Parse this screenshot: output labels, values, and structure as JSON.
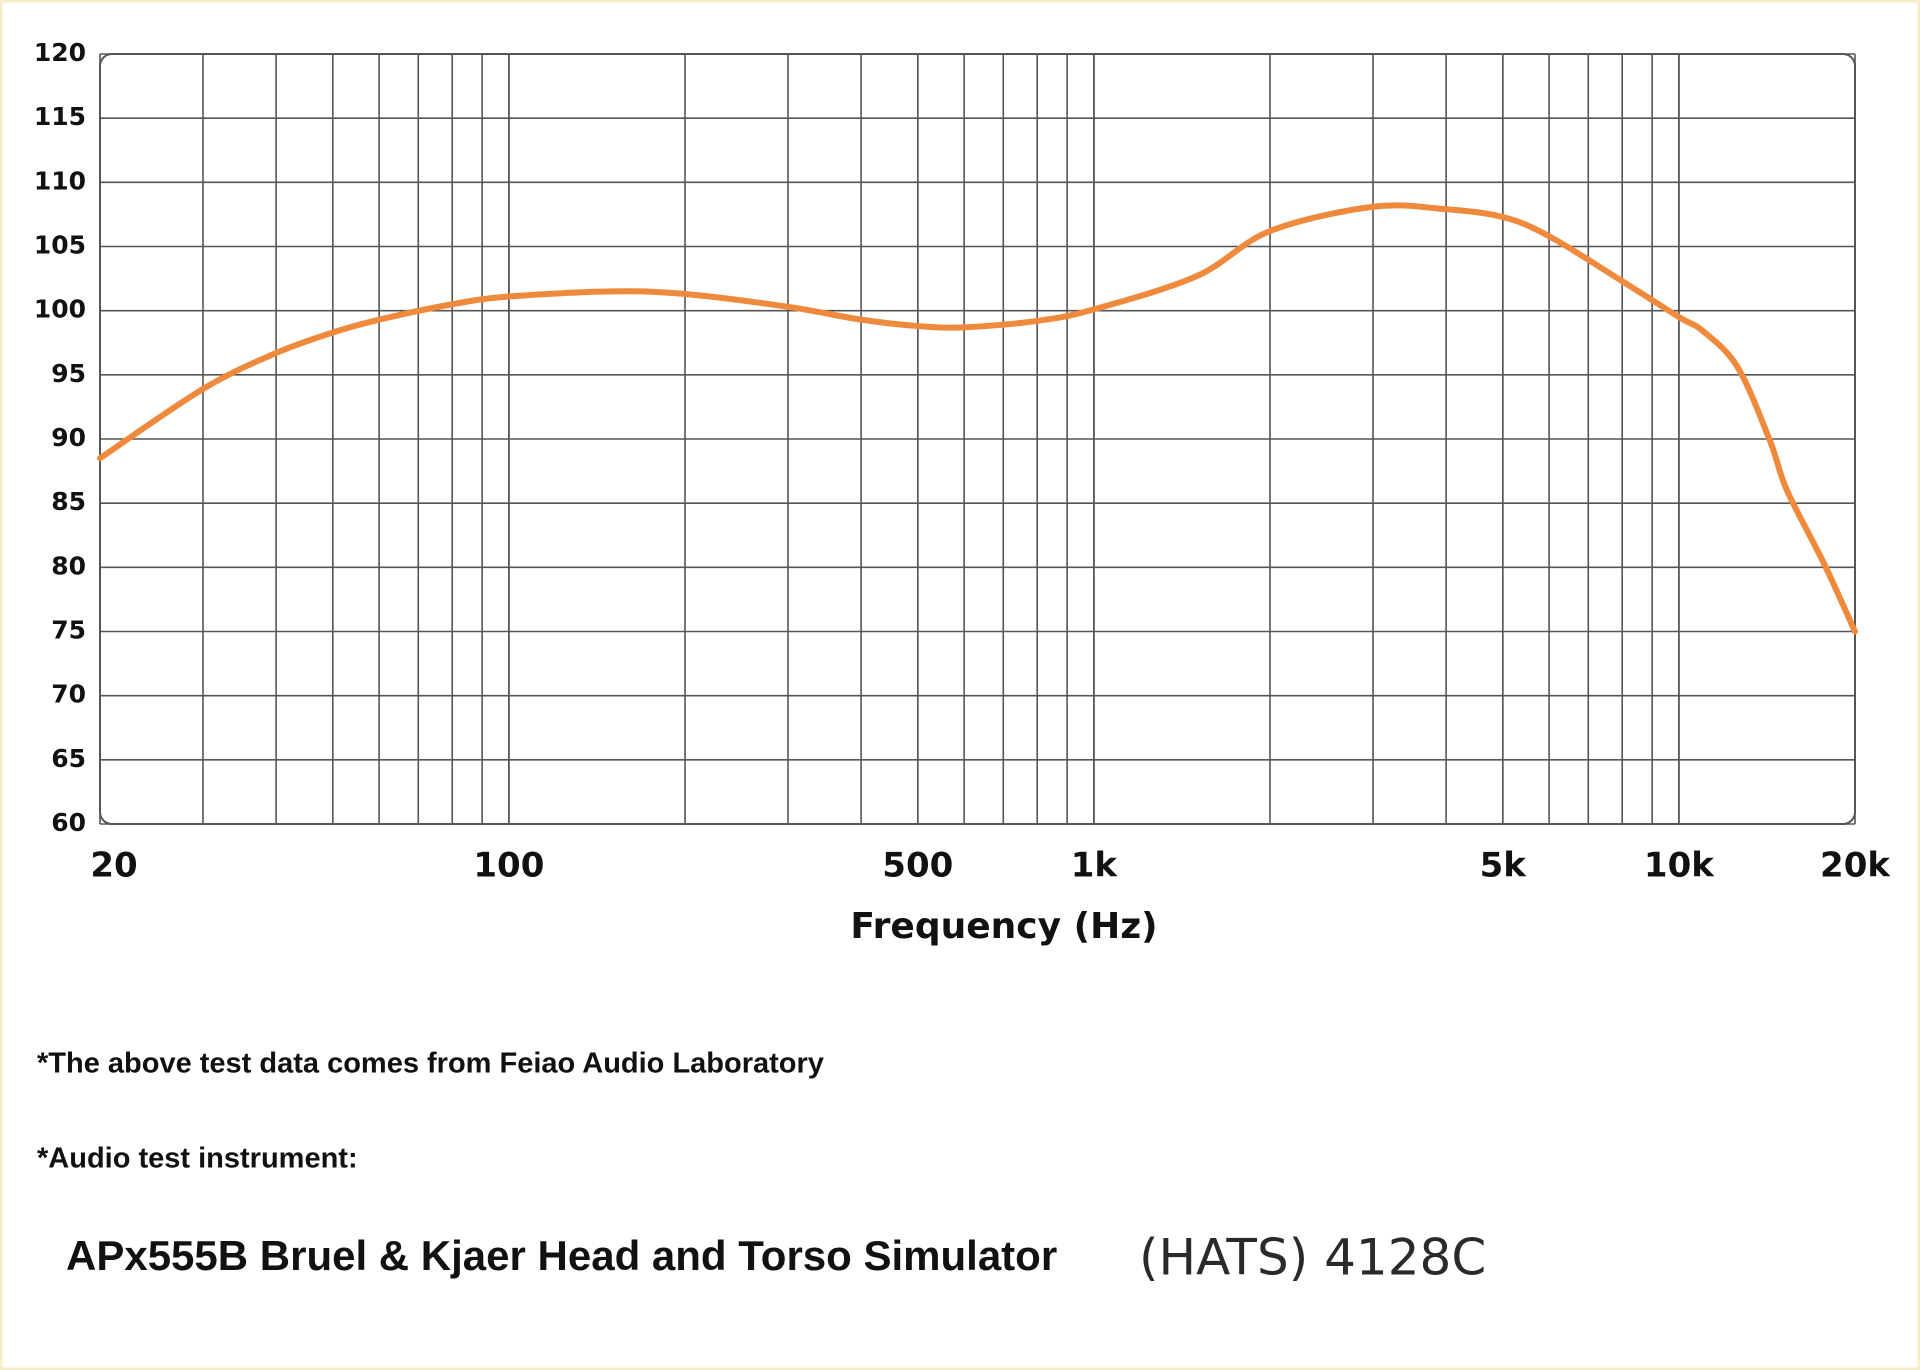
{
  "chart_data": {
    "type": "line",
    "x_label": "Frequency (Hz)",
    "xscale": "log",
    "xlim": [
      20,
      20000
    ],
    "ylim": [
      60,
      120
    ],
    "xticks": [
      20,
      100,
      500,
      {
        "value": 1000,
        "label": "1k"
      },
      {
        "value": 5000,
        "label": "5k"
      },
      {
        "value": 10000,
        "label": "10k"
      },
      {
        "value": 20000,
        "label": "20k"
      }
    ],
    "yticks": [
      60,
      65,
      70,
      75,
      80,
      85,
      90,
      95,
      100,
      105,
      110,
      115,
      120
    ],
    "grid": true,
    "series": [
      {
        "color": "#ef8a3d",
        "x": [
          20,
          30,
          40,
          50,
          60,
          80,
          100,
          150,
          200,
          300,
          400,
          500,
          600,
          800,
          1000,
          1500,
          2000,
          3000,
          4000,
          5000,
          6000,
          8000,
          10000,
          11000,
          12600,
          14300,
          15300,
          17700,
          20000
        ],
        "values": [
          88.5,
          93.9,
          96.7,
          98.3,
          99.3,
          100.5,
          101.1,
          101.5,
          101.3,
          100.3,
          99.3,
          98.8,
          98.7,
          99.2,
          100.1,
          102.7,
          106.2,
          108.1,
          107.9,
          107.3,
          105.8,
          102.3,
          99.5,
          98.4,
          95.6,
          89.9,
          86,
          80.3,
          75
        ]
      }
    ]
  },
  "notes": {
    "source": "*The above test data comes from Feiao Audio Laboratory",
    "instrument_label": "*Audio test instrument:",
    "instrument": "APx555B Bruel & Kjaer Head and Torso Simulator",
    "model": "(HATS) 4128C"
  }
}
